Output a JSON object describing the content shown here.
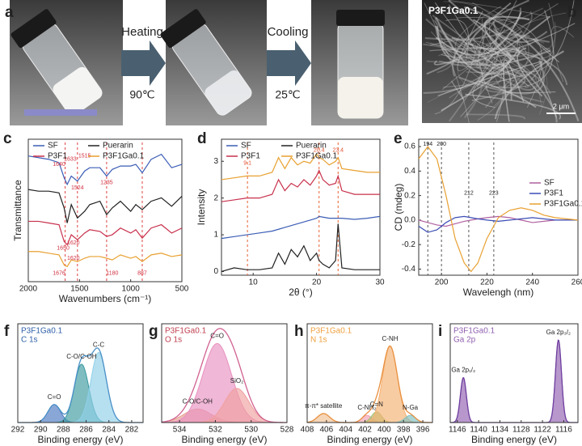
{
  "figure": {
    "panel_labels": [
      "a",
      "b",
      "c",
      "d",
      "e",
      "f",
      "g",
      "h",
      "i"
    ],
    "arrows": [
      {
        "action": "Heating",
        "temperature": "90℃"
      },
      {
        "action": "Cooling",
        "temperature": "25℃"
      }
    ],
    "micrograph": {
      "sample": "P3F1Ga0.1",
      "scale_bar": "2 μm"
    }
  },
  "chart_data": [
    {
      "type": "line",
      "xlabel": "Wavenumbers (cm⁻¹)",
      "ylabel": "Transmittance",
      "xlim": [
        2000,
        500
      ],
      "xticks": [
        2000,
        1500,
        1000,
        500
      ],
      "ylim": [
        1,
        9.5
      ],
      "legend": "upper left",
      "x": [
        2000,
        1900,
        1800,
        1700,
        1650,
        1620,
        1580,
        1520,
        1450,
        1400,
        1300,
        1235,
        1180,
        1100,
        1000,
        950,
        887,
        800,
        700,
        600,
        500
      ],
      "series": [
        {
          "name": "SF",
          "color": "#3b5db5",
          "values": [
            8.5,
            8.4,
            8.3,
            8.1,
            7.2,
            6.8,
            7.3,
            7.0,
            7.6,
            7.8,
            7.8,
            7.3,
            7.7,
            7.9,
            7.9,
            8.0,
            7.5,
            8.3,
            8.6,
            7.8,
            8.0
          ]
        },
        {
          "name": "Puerarin",
          "color": "#222222",
          "values": [
            6.5,
            6.4,
            6.4,
            6.3,
            5.4,
            4.5,
            5.6,
            4.8,
            5.2,
            5.6,
            5.8,
            5.0,
            5.4,
            5.8,
            5.2,
            5.6,
            5.3,
            5.8,
            6.0,
            5.5,
            6.1
          ]
        },
        {
          "name": "P3F1",
          "color": "#c8304c",
          "values": [
            4.6,
            4.6,
            4.5,
            4.4,
            3.4,
            3.2,
            3.8,
            3.5,
            3.9,
            4.1,
            4.0,
            3.7,
            3.8,
            4.2,
            3.9,
            4.1,
            3.6,
            4.2,
            4.4,
            3.9,
            4.2
          ]
        },
        {
          "name": "P3F1Ga0.1",
          "color": "#e8a030",
          "values": [
            2.8,
            2.8,
            2.7,
            2.6,
            2.0,
            1.9,
            2.3,
            2.2,
            2.4,
            2.5,
            2.5,
            2.4,
            2.3,
            2.6,
            2.4,
            2.5,
            2.2,
            2.6,
            2.7,
            2.5,
            2.6
          ]
        }
      ],
      "vlines": [
        1640,
        1520,
        1235,
        887
      ],
      "vline_color": "#e04040",
      "annotation_color": "#d03040",
      "annotations": [
        {
          "label": "1640",
          "x": 1700,
          "y": 8.0
        },
        {
          "label": "1633",
          "x": 1590,
          "y": 8.3
        },
        {
          "label": "1515",
          "x": 1450,
          "y": 8.5
        },
        {
          "label": "1524",
          "x": 1520,
          "y": 6.6
        },
        {
          "label": "1235",
          "x": 1235,
          "y": 6.9
        },
        {
          "label": "1650",
          "x": 1660,
          "y": 3.0
        },
        {
          "label": "1620",
          "x": 1560,
          "y": 3.3
        },
        {
          "label": "1620",
          "x": 1560,
          "y": 2.4
        },
        {
          "label": "1676",
          "x": 1700,
          "y": 1.5
        },
        {
          "label": "1180",
          "x": 1180,
          "y": 1.5
        },
        {
          "label": "887",
          "x": 887,
          "y": 1.5
        }
      ]
    },
    {
      "type": "line",
      "xlabel": "2θ (°)",
      "ylabel": "Intensity",
      "xlim": [
        5,
        30
      ],
      "xticks": [
        10,
        20,
        30
      ],
      "ylim": [
        -0.1,
        3.6
      ],
      "yticks": [
        0,
        1,
        2,
        3
      ],
      "legend": "upper left",
      "x": [
        5,
        7,
        9,
        11,
        13,
        14,
        15,
        16,
        17,
        18,
        19,
        20,
        20.4,
        21,
        22,
        23,
        23.4,
        24,
        26,
        28,
        30
      ],
      "series": [
        {
          "name": "SF",
          "color": "#3b5db5",
          "values": [
            0.9,
            0.95,
            1.0,
            1.05,
            1.1,
            1.15,
            1.2,
            1.25,
            1.3,
            1.35,
            1.4,
            1.45,
            1.5,
            1.48,
            1.45,
            1.45,
            1.45,
            1.45,
            1.42,
            1.45,
            1.5
          ]
        },
        {
          "name": "Puerarin",
          "color": "#222222",
          "values": [
            0,
            0.1,
            0.05,
            0.05,
            0.1,
            0.5,
            0.2,
            0.6,
            0.4,
            0.7,
            0.3,
            0.5,
            0.3,
            0.2,
            0.1,
            0.3,
            1.3,
            0.1,
            0.05,
            0.05,
            0.05
          ]
        },
        {
          "name": "P3F1",
          "color": "#c8304c",
          "values": [
            1.9,
            1.95,
            2.0,
            2.0,
            2.1,
            2.5,
            2.2,
            2.4,
            2.3,
            2.5,
            2.35,
            2.6,
            2.75,
            2.5,
            2.35,
            2.4,
            2.6,
            2.2,
            2.1,
            2.1,
            2.1
          ]
        },
        {
          "name": "P3F1Ga0.1",
          "color": "#e8a030",
          "values": [
            2.5,
            2.55,
            2.6,
            2.6,
            2.7,
            3.1,
            2.8,
            3.1,
            2.9,
            3.0,
            2.95,
            3.2,
            3.1,
            3.05,
            2.9,
            3.0,
            3.1,
            2.8,
            2.75,
            2.7,
            2.7
          ]
        }
      ],
      "vlines": [
        9.1,
        20.4,
        23.4
      ],
      "vline_color": "#e86030",
      "annotation_color": "#e05030",
      "annotations": [
        {
          "label": "9.1",
          "x": 9.1,
          "y": 2.95
        },
        {
          "label": "20.4",
          "x": 20.4,
          "y": 3.3
        },
        {
          "label": "23.4",
          "x": 23.4,
          "y": 3.3
        }
      ]
    },
    {
      "type": "line",
      "xlabel": "Wavelengh (nm)",
      "ylabel": "CD (mdeg)",
      "xlim": [
        190,
        260
      ],
      "xticks": [
        200,
        220,
        240,
        260
      ],
      "ylim": [
        -0.45,
        0.66
      ],
      "yticks": [
        -0.4,
        -0.2,
        {
          "value": 0,
          "label": "0.0"
        },
        0.2,
        0.4,
        0.6
      ],
      "legend": "center right",
      "x": [
        190,
        194,
        198,
        202,
        206,
        210,
        213,
        216,
        220,
        225,
        230,
        235,
        240,
        245,
        250,
        255,
        260
      ],
      "series": [
        {
          "name": "SF",
          "color": "#b060a0",
          "values": [
            0.0,
            -0.02,
            -0.04,
            -0.05,
            -0.03,
            -0.01,
            0.0,
            0.01,
            0.02,
            0.03,
            0.02,
            0.0,
            -0.02,
            -0.01,
            0.0,
            0.0,
            0.0
          ]
        },
        {
          "name": "P3F1",
          "color": "#3b4db5",
          "values": [
            -0.05,
            -0.1,
            -0.08,
            -0.02,
            0.02,
            0.03,
            0.02,
            0.01,
            0.0,
            -0.01,
            0.0,
            0.01,
            0.02,
            0.01,
            0.0,
            0.0,
            0.0
          ]
        },
        {
          "name": "P3F1Ga0.1",
          "color": "#e8a030",
          "values": [
            0.5,
            0.6,
            0.5,
            0.2,
            -0.15,
            -0.35,
            -0.42,
            -0.35,
            -0.15,
            0.02,
            0.08,
            0.1,
            0.08,
            0.04,
            0.02,
            0.01,
            0
          ]
        }
      ],
      "vlines": [
        194,
        200,
        212,
        223
      ],
      "vline_color": "#555555",
      "annotation_color": "#222222",
      "annotations": [
        {
          "label": "194",
          "x": 194,
          "y": 0.62
        },
        {
          "label": "200",
          "x": 200,
          "y": 0.62
        },
        {
          "label": "212",
          "x": 212,
          "y": 0.22
        },
        {
          "label": "223",
          "x": 223,
          "y": 0.22
        }
      ]
    },
    {
      "type": "area",
      "title": "P3F1Ga0.1",
      "subtitle": "C 1s",
      "title_color": "#2f5fa8",
      "line_color": "#4a90c8",
      "xlabel": "Binding energy (eV)",
      "xlim": [
        292,
        281
      ],
      "xticks": [
        292,
        290,
        288,
        286,
        284,
        282
      ],
      "ylim": [
        0,
        1.1
      ],
      "peaks": [
        {
          "name": "C=O",
          "center": 288.8,
          "height": 0.2,
          "fwhm": 1.3,
          "color": "#4a78c0"
        },
        {
          "name": "C-O/C-OH",
          "center": 286.4,
          "height": 0.65,
          "fwhm": 1.5,
          "color": "#3a9aa0"
        },
        {
          "name": "C-C",
          "center": 284.9,
          "height": 0.78,
          "fwhm": 1.6,
          "color": "#8fd0e8"
        }
      ]
    },
    {
      "type": "area",
      "title": "P3F1Ga0.1",
      "subtitle": "O 1s",
      "title_color": "#c04050",
      "line_color": "#d06090",
      "xlabel": "Binding energy (eV)",
      "xlim": [
        535,
        528
      ],
      "xticks": [
        534,
        532,
        530,
        528
      ],
      "ylim": [
        0,
        1.1
      ],
      "peaks": [
        {
          "name": "C-O/C-OH",
          "center": 533.0,
          "height": 0.15,
          "fwhm": 1.8,
          "color": "#e8a090"
        },
        {
          "name": "C=O",
          "center": 531.9,
          "height": 0.88,
          "fwhm": 1.9,
          "color": "#e890c0"
        },
        {
          "name": "SiO₂",
          "center": 530.8,
          "height": 0.38,
          "fwhm": 1.6,
          "color": "#f0a0a0"
        }
      ]
    },
    {
      "type": "area",
      "title": "P3F1Ga0.1",
      "subtitle": "N 1s",
      "title_color": "#f0a040",
      "line_color": "#e89040",
      "xlabel": "Binding energy (eV)",
      "xlim": [
        408,
        395
      ],
      "xticks": [
        408,
        406,
        404,
        402,
        400,
        398,
        396
      ],
      "ylim": [
        0,
        1.1
      ],
      "peaks": [
        {
          "name": "π-π* satellite",
          "center": 406.3,
          "height": 0.1,
          "fwhm": 1.5,
          "color": "#f0c090"
        },
        {
          "name": "C-NH₂",
          "center": 401.8,
          "height": 0.08,
          "fwhm": 1.2,
          "color": "#f0a0b0"
        },
        {
          "name": "C=N",
          "center": 400.8,
          "height": 0.12,
          "fwhm": 1.2,
          "color": "#a0c070"
        },
        {
          "name": "C-NH",
          "center": 399.4,
          "height": 0.85,
          "fwhm": 1.8,
          "color": "#f5b070"
        },
        {
          "name": "N-Ga",
          "center": 397.3,
          "height": 0.08,
          "fwhm": 1.3,
          "color": "#80c0c0"
        }
      ]
    },
    {
      "type": "area",
      "title": "P3F1Ga0.1",
      "subtitle": "Ga 2p",
      "title_color": "#9060b0",
      "line_color": "#7040a0",
      "xlabel": "Binding energy (eV)",
      "xlim": [
        1148,
        1112
      ],
      "xticks": [
        1146,
        1140,
        1134,
        1128,
        1122,
        1116
      ],
      "ylim": [
        0,
        1.1
      ],
      "peaks": [
        {
          "name": "Ga 2p₁/₂",
          "center": 1144.3,
          "height": 0.5,
          "fwhm": 2.0,
          "color": "#9060b0"
        },
        {
          "name": "Ga 2p₃/₂",
          "center": 1117.5,
          "height": 0.92,
          "fwhm": 2.0,
          "color": "#9060b0"
        }
      ]
    }
  ]
}
